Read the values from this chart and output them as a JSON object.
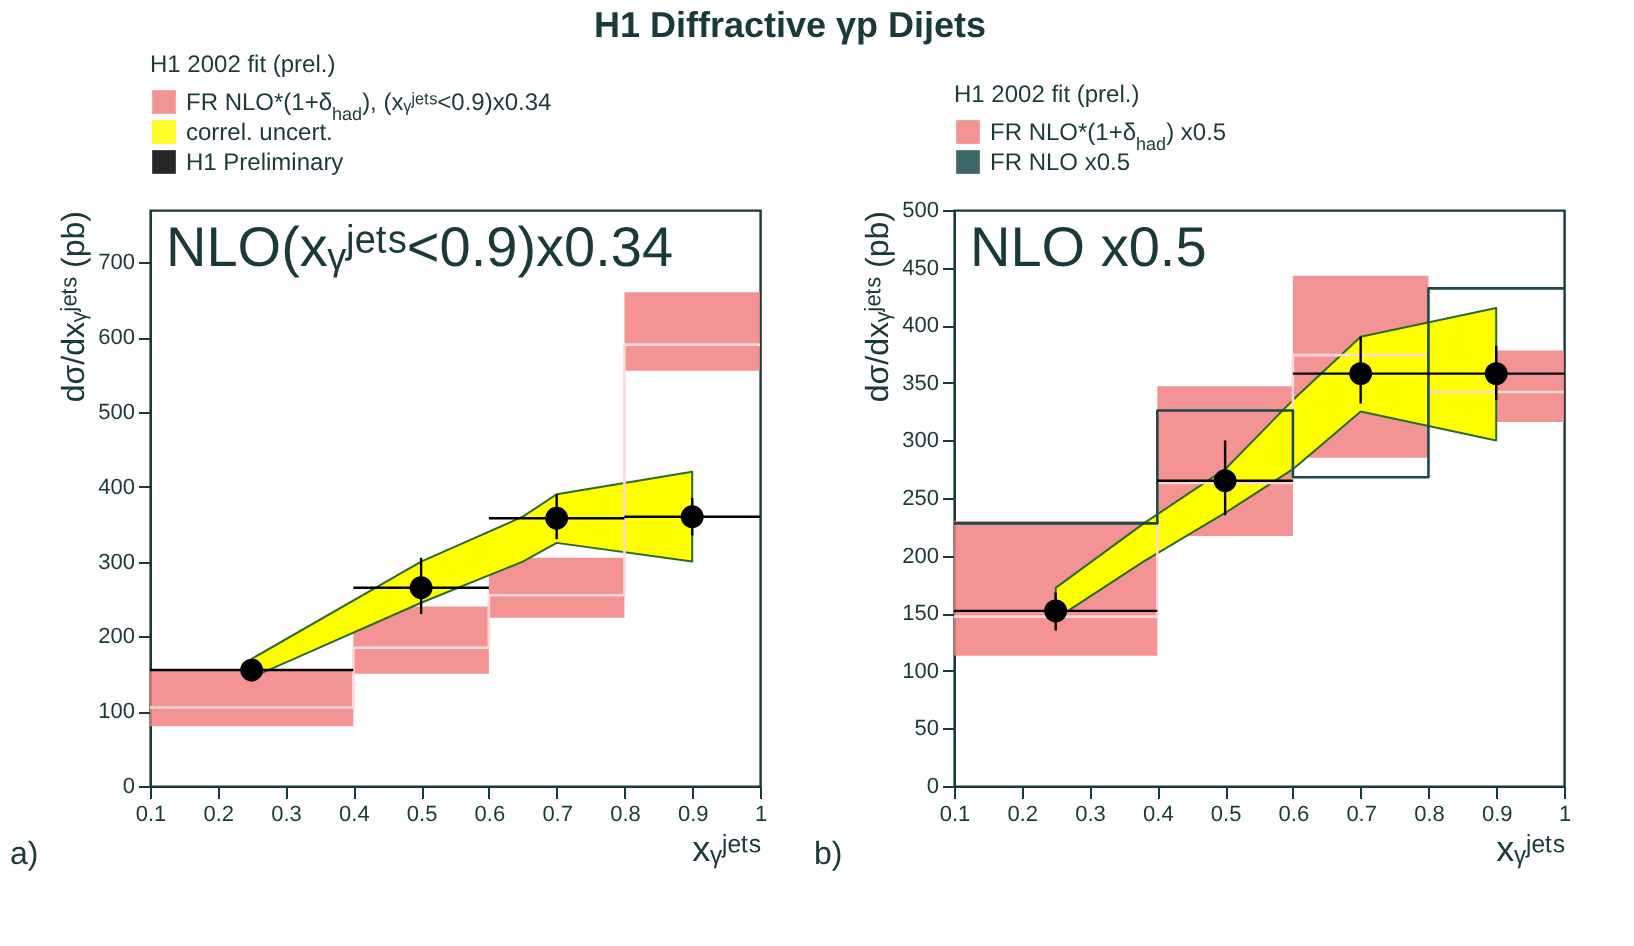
{
  "chart_data": [
    {
      "type": "scatter",
      "title": "H1 Diffractive   γp Dijets",
      "xlabel": "xᵧʲᵉᵗˢ",
      "ylabel": "dσ/dxᵧʲᵉᵗˢ (pb)",
      "legend_title": "H1 2002 fit (prel.)",
      "legend": "top",
      "xlim": [
        0.1,
        1
      ],
      "xticks": [
        0.1,
        0.2,
        0.3,
        0.4,
        0.5,
        0.6,
        0.7,
        0.8,
        0.9,
        1
      ],
      "ylim": [
        0,
        770
      ],
      "yticks": [
        0,
        100,
        200,
        300,
        400,
        500,
        600,
        700
      ],
      "annotations": [
        "NLO(xᵧʲᵉᵗˢ<0.9)x0.34",
        "a)"
      ],
      "series": [
        {
          "type": "histogram",
          "name": "FR NLO*(1+δ$_{had}$), (xᵧʲᵉᵗˢ<0.9)x0.34",
          "color": "#f28080",
          "bins": [
            0.1,
            0.4,
            0.6,
            0.8,
            1
          ],
          "base": [
            80,
            150,
            225,
            555
          ],
          "values": [
            75,
            90,
            80,
            105
          ]
        },
        {
          "type": "line",
          "name": "correl. uncert.",
          "color": "#ffff00",
          "x": [
            0.25,
            0.5,
            0.65,
            0.7,
            0.9
          ],
          "values": [
            null,
            null,
            null,
            null,
            null
          ],
          "lower": [
            145,
            245,
            300,
            325,
            300
          ],
          "upper": [
            170,
            300,
            360,
            390,
            420
          ]
        },
        {
          "type": "step",
          "color": "#ffd8d8",
          "x": [
            0.1,
            0.4,
            0.6,
            0.8,
            1
          ],
          "values": [
            105,
            185,
            255,
            590,
            590
          ]
        },
        {
          "name": "H1 Preliminary",
          "color": "#000000",
          "x": [
            0.25,
            0.5,
            0.7,
            0.9
          ],
          "values": [
            155,
            265,
            358,
            360
          ],
          "errors": [
            [
              140,
              165
            ],
            [
              230,
              305
            ],
            [
              330,
              390
            ],
            [
              335,
              385
            ]
          ],
          "xerrors": [
            [
              0.1,
              0.4
            ],
            [
              0.4,
              0.6
            ],
            [
              0.6,
              0.8
            ],
            [
              0.8,
              1
            ]
          ]
        }
      ]
    },
    {
      "type": "scatter",
      "xlabel": "xᵧʲᵉᵗˢ",
      "ylabel": "dσ/dxᵧʲᵉᵗˢ (pb)",
      "legend_title": "H1 2002 fit (prel.)",
      "legend": "top",
      "xlim": [
        0.1,
        1
      ],
      "xticks": [
        0.1,
        0.2,
        0.3,
        0.4,
        0.5,
        0.6,
        0.7,
        0.8,
        0.9,
        1
      ],
      "ylim": [
        0,
        500
      ],
      "yticks": [
        0,
        50,
        100,
        150,
        200,
        250,
        300,
        350,
        400,
        450,
        500
      ],
      "annotations": [
        "NLO x0.5",
        "b)"
      ],
      "series": [
        {
          "type": "histogram",
          "name": "FR NLO*(1+δ$_{had}$) x0.5",
          "color": "#f28080",
          "bins": [
            0.1,
            0.4,
            0.6,
            0.8,
            1
          ],
          "base": [
            113,
            217,
            285,
            316
          ],
          "values": [
            117,
            130,
            158,
            62
          ]
        },
        {
          "type": "line",
          "color": "#ffff00",
          "x": [
            0.25,
            0.38,
            0.5,
            0.6,
            0.7,
            0.9
          ],
          "values": [
            null,
            null,
            null,
            null,
            null,
            null
          ],
          "lower": [
            145,
            195,
            237,
            275,
            325,
            300
          ],
          "upper": [
            172,
            228,
            275,
            335,
            390,
            415
          ]
        },
        {
          "type": "step",
          "color": "#ffd8d8",
          "x": [
            0.1,
            0.4,
            0.6,
            0.8,
            1
          ],
          "values": [
            147,
            263,
            374,
            342,
            342
          ]
        },
        {
          "type": "step",
          "name": "FR NLO x0.5",
          "color": "#1a4a4a",
          "x": [
            0.1,
            0.4,
            0.6,
            0.8,
            1
          ],
          "values": [
            228,
            326,
            268,
            432,
            432
          ]
        },
        {
          "color": "#000000",
          "x": [
            0.25,
            0.5,
            0.7,
            0.9
          ],
          "values": [
            152,
            265,
            358,
            358
          ],
          "errors": [
            [
              135,
              168
            ],
            [
              235,
              300
            ],
            [
              332,
              390
            ],
            [
              335,
              382
            ]
          ],
          "xerrors": [
            [
              0.1,
              0.4
            ],
            [
              0.4,
              0.6
            ],
            [
              0.6,
              0.8
            ],
            [
              0.8,
              1
            ]
          ]
        }
      ]
    }
  ]
}
